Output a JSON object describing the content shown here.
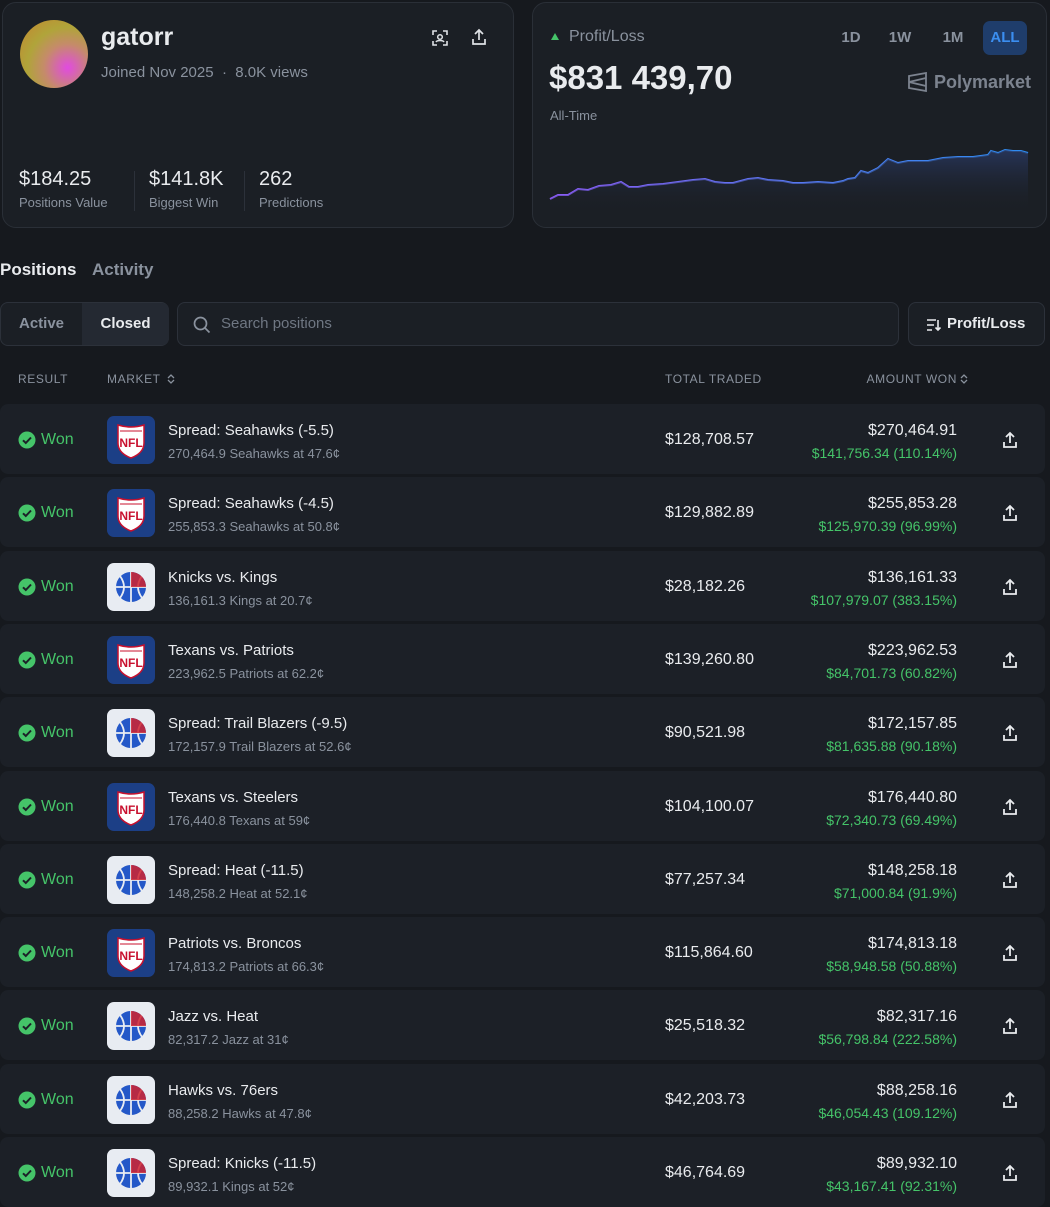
{
  "profile": {
    "username": "gatorr",
    "joined": "Joined Nov 2025",
    "separator": "·",
    "views": "8.0K views",
    "stats": [
      {
        "value": "$184.25",
        "label": "Positions Value"
      },
      {
        "value": "$141.8K",
        "label": "Biggest Win"
      },
      {
        "value": "262",
        "label": "Predictions"
      }
    ]
  },
  "pnl": {
    "label": "Profit/Loss",
    "value": "$831 439,70",
    "period": "All-Time",
    "ranges": [
      "1D",
      "1W",
      "1M",
      "ALL"
    ],
    "brand": "Polymarket"
  },
  "tabs": [
    "Positions",
    "Activity"
  ],
  "filters": [
    "Active",
    "Closed"
  ],
  "search": "Search positions",
  "sort": "Profit/Loss",
  "table": {
    "headers": [
      "RESULT",
      "MARKET",
      "TOTAL TRADED",
      "AMOUNT WON"
    ],
    "rows": [
      {
        "result": "Won",
        "logo": "NFL",
        "market": "Spread: Seahawks (-5.5)",
        "detail": "270,464.9 Seahawks at 47.6¢",
        "traded": "$128,708.57",
        "won": "$270,464.91",
        "profit": "$141,756.34 (110.14%)"
      },
      {
        "result": "Won",
        "logo": "NFL",
        "market": "Spread: Seahawks (-4.5)",
        "detail": "255,853.3 Seahawks at 50.8¢",
        "traded": "$129,882.89",
        "won": "$255,853.28",
        "profit": "$125,970.39 (96.99%)"
      },
      {
        "result": "Won",
        "logo": null,
        "market": "Knicks vs. Kings",
        "detail": "136,161.3 Kings at 20.7¢",
        "traded": "$28,182.26",
        "won": "$136,161.33",
        "profit": "$107,979.07 (383.15%)"
      },
      {
        "result": "Won",
        "logo": "NFL",
        "market": "Texans vs. Patriots",
        "detail": "223,962.5 Patriots at 62.2¢",
        "traded": "$139,260.80",
        "won": "$223,962.53",
        "profit": "$84,701.73 (60.82%)"
      },
      {
        "result": "Won",
        "logo": null,
        "market": "Spread: Trail Blazers (-9.5)",
        "detail": "172,157.9 Trail Blazers at 52.6¢",
        "traded": "$90,521.98",
        "won": "$172,157.85",
        "profit": "$81,635.88 (90.18%)"
      },
      {
        "result": "Won",
        "logo": "NFL",
        "market": "Texans vs. Steelers",
        "detail": "176,440.8 Texans at 59¢",
        "traded": "$104,100.07",
        "won": "$176,440.80",
        "profit": "$72,340.73 (69.49%)"
      },
      {
        "result": "Won",
        "logo": null,
        "market": "Spread: Heat (-11.5)",
        "detail": "148,258.2 Heat at 52.1¢",
        "traded": "$77,257.34",
        "won": "$148,258.18",
        "profit": "$71,000.84 (91.9%)"
      },
      {
        "result": "Won",
        "logo": "NFL",
        "market": "Patriots vs. Broncos",
        "detail": "174,813.2 Patriots at 66.3¢",
        "traded": "$115,864.60",
        "won": "$174,813.18",
        "profit": "$58,948.58 (50.88%)"
      },
      {
        "result": "Won",
        "logo": null,
        "market": "Jazz vs. Heat",
        "detail": "82,317.2 Jazz at 31¢",
        "traded": "$25,518.32",
        "won": "$82,317.16",
        "profit": "$56,798.84 (222.58%)"
      },
      {
        "result": "Won",
        "logo": null,
        "market": "Hawks vs. 76ers",
        "detail": "88,258.2 Hawks at 47.8¢",
        "traded": "$42,203.73",
        "won": "$88,258.16",
        "profit": "$46,054.43 (109.12%)"
      },
      {
        "result": "Won",
        "logo": null,
        "market": "Spread: Knicks (-11.5)",
        "detail": "89,932.1 Kings at 52¢",
        "traded": "$46,764.69",
        "won": "$89,932.10",
        "profit": "$43,167.41 (92.31%)"
      }
    ]
  }
}
